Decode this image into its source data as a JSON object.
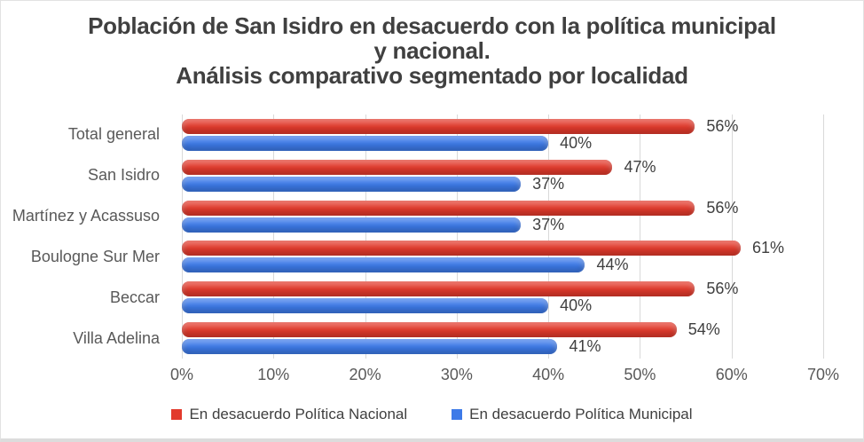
{
  "chart_data": {
    "type": "bar",
    "orientation": "horizontal",
    "title": "Población de San Isidro en desacuerdo con la política municipal y nacional. Análisis comparativo segmentado por localidad",
    "title_lines": [
      "Población de San Isidro en desacuerdo con la política municipal",
      "y nacional.",
      "Análisis comparativo segmentado por localidad"
    ],
    "categories": [
      "Total general",
      "San Isidro",
      "Martínez y Acassuso",
      "Boulogne Sur Mer",
      "Beccar",
      "Villa Adelina"
    ],
    "series": [
      {
        "name": "En desacuerdo Política Nacional",
        "color": "#e23a2c",
        "values": [
          56,
          47,
          56,
          61,
          56,
          54
        ]
      },
      {
        "name": "En desacuerdo Política Municipal",
        "color": "#3d7ae8",
        "values": [
          40,
          37,
          37,
          44,
          40,
          41
        ]
      }
    ],
    "data_labels": true,
    "value_suffix": "%",
    "x_ticks": [
      "0%",
      "10%",
      "20%",
      "30%",
      "40%",
      "50%",
      "60%",
      "70%"
    ],
    "xlim": [
      0,
      70
    ],
    "grid": "vertical-gridlines",
    "legend_position": "bottom",
    "colors": {
      "grid": "#d9d9d9",
      "axis_text": "#595959",
      "value_label_text": "#3f3f3f",
      "title_text": "#404040",
      "background": "#ffffff",
      "border": "#dcdcdc"
    }
  }
}
